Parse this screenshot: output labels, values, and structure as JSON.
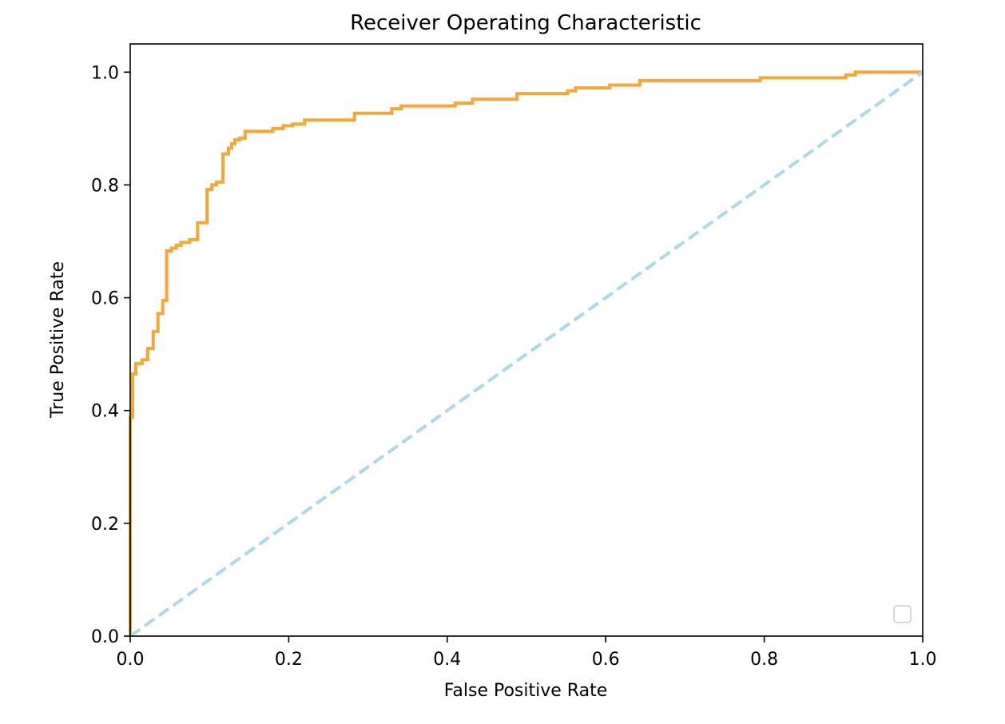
{
  "chart_data": {
    "type": "line",
    "title": "Receiver Operating Characteristic",
    "xlabel": "False Positive Rate",
    "ylabel": "True Positive Rate",
    "xlim": [
      0.0,
      1.0
    ],
    "ylim": [
      0.0,
      1.05
    ],
    "x_ticks": [
      "0.0",
      "0.2",
      "0.4",
      "0.6",
      "0.8",
      "1.0"
    ],
    "y_ticks": [
      "0.0",
      "0.2",
      "0.4",
      "0.6",
      "0.8",
      "1.0"
    ],
    "x_tick_values": [
      0.0,
      0.2,
      0.4,
      0.6,
      0.8,
      1.0
    ],
    "y_tick_values": [
      0.0,
      0.2,
      0.4,
      0.6,
      0.8,
      1.0
    ],
    "grid": false,
    "legend": {
      "placement": "lower-right",
      "entries": []
    },
    "series": [
      {
        "color": "#f4a734",
        "line_style": "solid",
        "x": [
          0.0,
          0.0,
          0.003,
          0.003,
          0.007,
          0.007,
          0.015,
          0.015,
          0.022,
          0.022,
          0.029,
          0.029,
          0.035,
          0.035,
          0.041,
          0.041,
          0.046,
          0.046,
          0.052,
          0.052,
          0.058,
          0.058,
          0.064,
          0.064,
          0.075,
          0.075,
          0.085,
          0.085,
          0.097,
          0.097,
          0.103,
          0.103,
          0.109,
          0.109,
          0.117,
          0.117,
          0.124,
          0.124,
          0.128,
          0.128,
          0.132,
          0.132,
          0.138,
          0.138,
          0.145,
          0.145,
          0.18,
          0.18,
          0.193,
          0.193,
          0.205,
          0.205,
          0.22,
          0.22,
          0.283,
          0.283,
          0.33,
          0.33,
          0.342,
          0.342,
          0.41,
          0.41,
          0.432,
          0.432,
          0.488,
          0.488,
          0.552,
          0.552,
          0.562,
          0.562,
          0.605,
          0.605,
          0.643,
          0.643,
          0.795,
          0.795,
          0.903,
          0.903,
          0.915,
          0.915,
          1.0
        ],
        "y": [
          0.0,
          0.388,
          0.388,
          0.465,
          0.465,
          0.483,
          0.483,
          0.49,
          0.49,
          0.51,
          0.51,
          0.54,
          0.54,
          0.572,
          0.572,
          0.595,
          0.595,
          0.683,
          0.683,
          0.688,
          0.688,
          0.693,
          0.693,
          0.698,
          0.698,
          0.703,
          0.703,
          0.733,
          0.733,
          0.792,
          0.792,
          0.8,
          0.8,
          0.805,
          0.805,
          0.855,
          0.855,
          0.865,
          0.865,
          0.873,
          0.873,
          0.88,
          0.88,
          0.883,
          0.883,
          0.895,
          0.895,
          0.9,
          0.9,
          0.905,
          0.905,
          0.908,
          0.908,
          0.915,
          0.915,
          0.927,
          0.927,
          0.935,
          0.935,
          0.94,
          0.94,
          0.945,
          0.945,
          0.952,
          0.952,
          0.962,
          0.962,
          0.967,
          0.967,
          0.972,
          0.972,
          0.977,
          0.977,
          0.985,
          0.985,
          0.99,
          0.99,
          0.995,
          0.995,
          1.0,
          1.0
        ]
      },
      {
        "color": "#add8e6",
        "line_style": "dashed",
        "x": [
          0.0,
          1.0
        ],
        "y": [
          0.0,
          1.0
        ]
      }
    ]
  }
}
